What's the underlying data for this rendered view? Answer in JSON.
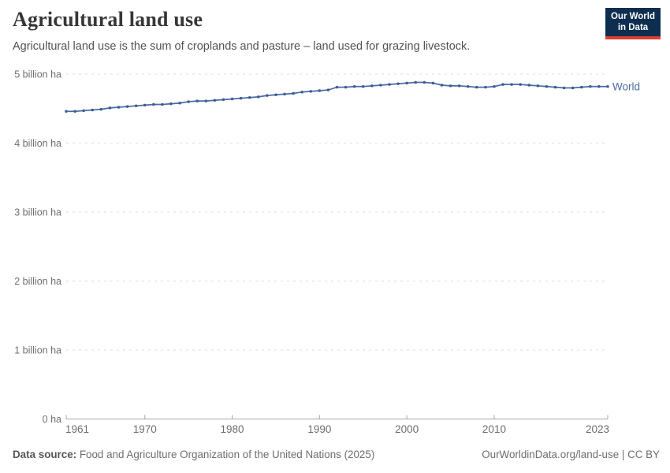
{
  "header": {
    "title": "Agricultural land use",
    "subtitle": "Agricultural land use is the sum of croplands and pasture – land used for grazing livestock.",
    "logo": {
      "line1": "Our World",
      "line2": "in Data"
    }
  },
  "footer": {
    "source_label": "Data source:",
    "source_text": "Food and Agriculture Organization of the United Nations (2025)",
    "link_text": "OurWorldinData.org/land-use | CC BY"
  },
  "colors": {
    "logo_bg": "#0d2e4f",
    "logo_accent": "#dc3f31",
    "line": "#4c6ba5",
    "marker": "#3d5c94",
    "grid": "#dcdcdc",
    "axis": "#a6a6a6",
    "axis_text": "#6e6e6e",
    "title_text": "#363636",
    "subtitle_text": "#525252"
  },
  "chart_data": {
    "type": "line",
    "title": "Agricultural land use",
    "unit": "billion ha",
    "ylim": [
      0,
      5
    ],
    "grid": "horizontal-dashed",
    "legend": "end-of-line-label",
    "yticks": [
      {
        "value": 0,
        "label": "0 ha"
      },
      {
        "value": 1,
        "label": "1 billion ha"
      },
      {
        "value": 2,
        "label": "2 billion ha"
      },
      {
        "value": 3,
        "label": "3 billion ha"
      },
      {
        "value": 4,
        "label": "4 billion ha"
      },
      {
        "value": 5,
        "label": "5 billion ha"
      }
    ],
    "xticks": [
      1961,
      1970,
      1980,
      1990,
      2000,
      2010,
      2023
    ],
    "x": [
      1961,
      1962,
      1963,
      1964,
      1965,
      1966,
      1967,
      1968,
      1969,
      1970,
      1971,
      1972,
      1973,
      1974,
      1975,
      1976,
      1977,
      1978,
      1979,
      1980,
      1981,
      1982,
      1983,
      1984,
      1985,
      1986,
      1987,
      1988,
      1989,
      1990,
      1991,
      1992,
      1993,
      1994,
      1995,
      1996,
      1997,
      1998,
      1999,
      2000,
      2001,
      2002,
      2003,
      2004,
      2005,
      2006,
      2007,
      2008,
      2009,
      2010,
      2011,
      2012,
      2013,
      2014,
      2015,
      2016,
      2017,
      2018,
      2019,
      2020,
      2021,
      2022,
      2023
    ],
    "series": [
      {
        "name": "World",
        "color": "#4c6ba5",
        "marker_color": "#3d5c94",
        "values": [
          4.46,
          4.46,
          4.47,
          4.48,
          4.49,
          4.51,
          4.52,
          4.53,
          4.54,
          4.55,
          4.56,
          4.56,
          4.57,
          4.58,
          4.6,
          4.61,
          4.61,
          4.62,
          4.63,
          4.64,
          4.65,
          4.66,
          4.67,
          4.69,
          4.7,
          4.71,
          4.72,
          4.74,
          4.75,
          4.76,
          4.77,
          4.81,
          4.81,
          4.82,
          4.82,
          4.83,
          4.84,
          4.85,
          4.86,
          4.87,
          4.88,
          4.88,
          4.87,
          4.84,
          4.83,
          4.83,
          4.82,
          4.81,
          4.81,
          4.82,
          4.85,
          4.85,
          4.85,
          4.84,
          4.83,
          4.82,
          4.81,
          4.8,
          4.8,
          4.81,
          4.82,
          4.82,
          4.82
        ]
      }
    ]
  }
}
